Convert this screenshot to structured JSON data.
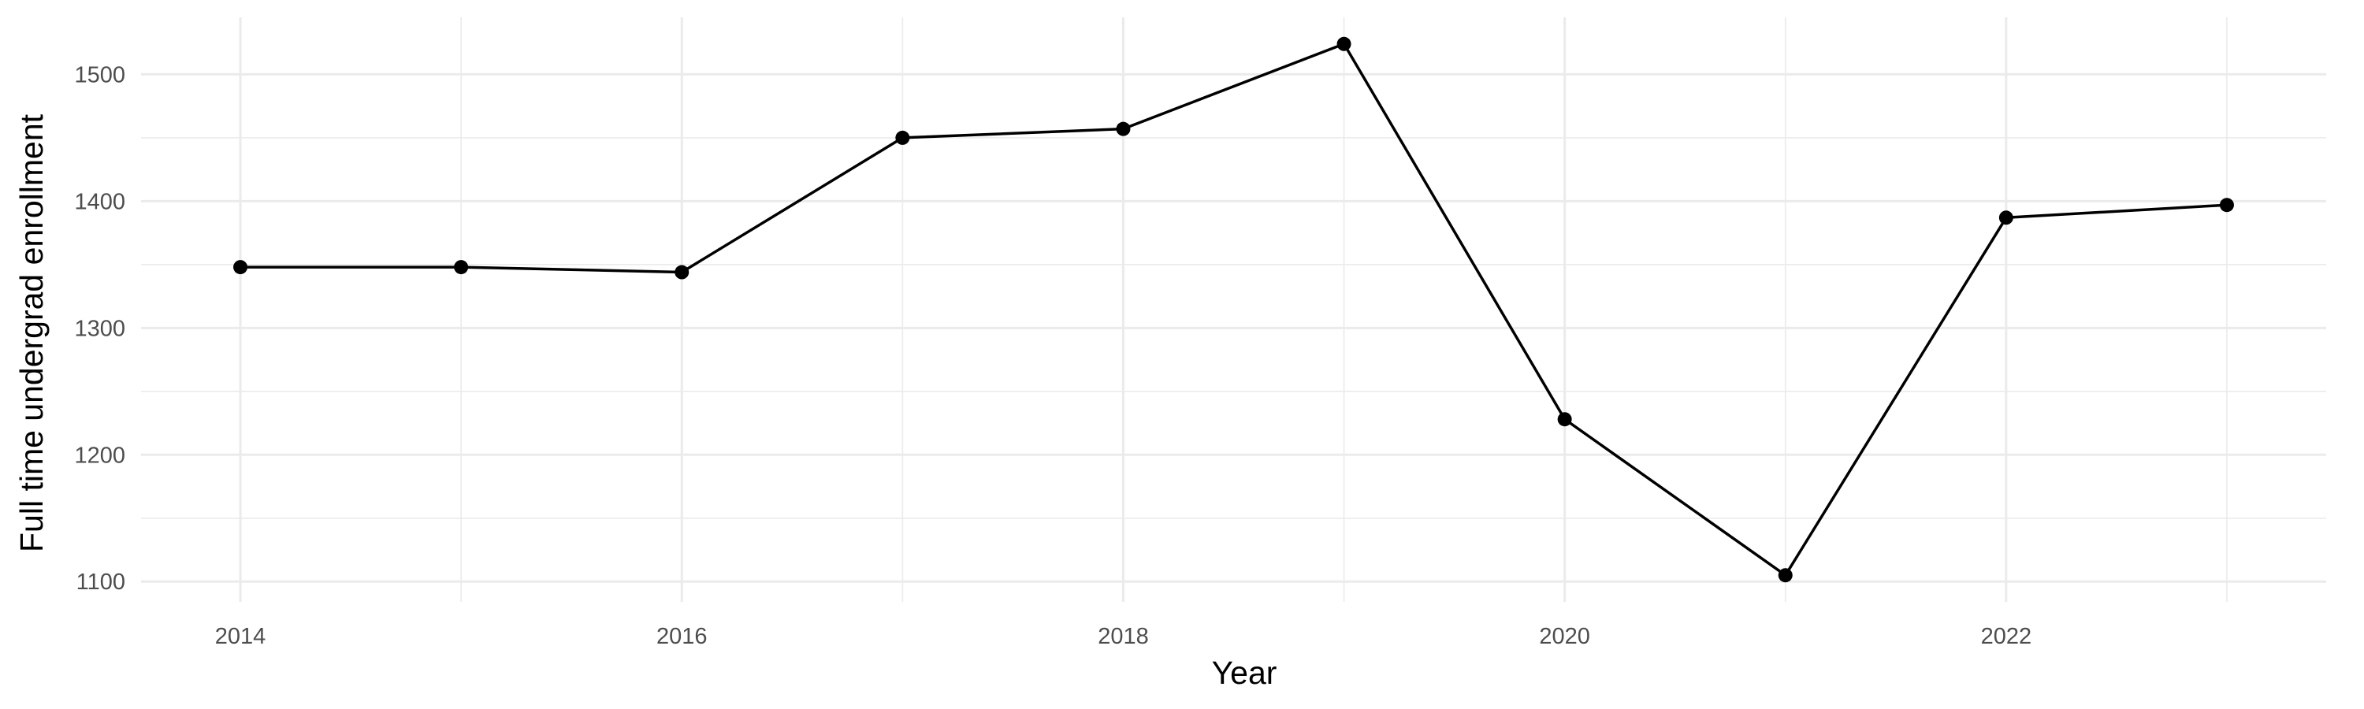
{
  "chart_data": {
    "type": "line",
    "title": "",
    "xlabel": "Year",
    "ylabel": "Full time undergrad enrollment",
    "x": [
      2014,
      2015,
      2016,
      2017,
      2018,
      2019,
      2020,
      2021,
      2022,
      2023
    ],
    "series": [
      {
        "values": [
          1348,
          1348,
          1344,
          1450,
          1457,
          1524,
          1228,
          1105,
          1387,
          1397
        ]
      }
    ],
    "x_ticks": [
      2014,
      2016,
      2018,
      2020,
      2022
    ],
    "x_tick_labels": [
      "2014",
      "2016",
      "2018",
      "2020",
      "2022"
    ],
    "y_ticks": [
      1100,
      1200,
      1300,
      1400,
      1500
    ],
    "y_tick_labels": [
      "1100",
      "1200",
      "1300",
      "1400",
      "1500"
    ],
    "xlim": [
      2013.55,
      2023.45
    ],
    "ylim": [
      1084,
      1545
    ],
    "grid": true,
    "legend": "none",
    "colors": {
      "line": "#000000",
      "grid": "#ebebeb",
      "tick_text": "#4d4d4d",
      "background": "#ffffff"
    }
  }
}
